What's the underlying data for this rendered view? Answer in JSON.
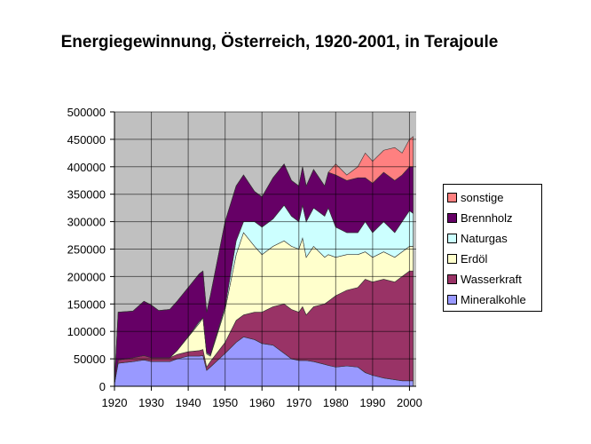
{
  "chart_data": {
    "type": "area",
    "stacked": true,
    "title": "Energiegewinnung, Österreich, 1920-2001, in Terajoule",
    "xlabel": "",
    "ylabel": "",
    "xlim": [
      1920,
      2001
    ],
    "ylim": [
      0,
      500000
    ],
    "x_ticks": [
      "1920",
      "1930",
      "1940",
      "1950",
      "1960",
      "1970",
      "1980",
      "1990",
      "2000"
    ],
    "y_ticks": [
      "0",
      "50000",
      "100000",
      "150000",
      "200000",
      "250000",
      "300000",
      "350000",
      "400000",
      "450000",
      "500000"
    ],
    "grid": true,
    "legend_position": "right",
    "background": "#c0c0c0",
    "x": [
      1920,
      1921,
      1925,
      1928,
      1930,
      1932,
      1935,
      1937,
      1940,
      1943,
      1944,
      1945,
      1946,
      1950,
      1953,
      1955,
      1958,
      1960,
      1963,
      1966,
      1968,
      1970,
      1971,
      1972,
      1974,
      1977,
      1978,
      1980,
      1983,
      1986,
      1988,
      1990,
      1993,
      1996,
      1998,
      2000,
      2001
    ],
    "series": [
      {
        "name": "Mineralkohle",
        "color": "#9999ff",
        "values": [
          5000,
          42000,
          45000,
          48000,
          45000,
          45000,
          45000,
          50000,
          55000,
          55000,
          56000,
          29000,
          35000,
          60000,
          80000,
          90000,
          85000,
          78000,
          75000,
          60000,
          50000,
          47000,
          47000,
          47000,
          45000,
          40000,
          38000,
          35000,
          37000,
          35000,
          25000,
          20000,
          15000,
          12000,
          10000,
          10000,
          10000
        ]
      },
      {
        "name": "Wasserkraft",
        "color": "#993366",
        "values": [
          0,
          6000,
          7000,
          8000,
          7000,
          7000,
          7000,
          8000,
          8000,
          10000,
          11000,
          6000,
          10000,
          20000,
          40000,
          40000,
          50000,
          57000,
          70000,
          90000,
          90000,
          88000,
          98000,
          83000,
          100000,
          110000,
          117000,
          130000,
          138000,
          145000,
          170000,
          170000,
          180000,
          178000,
          190000,
          200000,
          200000
        ]
      },
      {
        "name": "Erdöl",
        "color": "#ffffcc",
        "values": [
          0,
          0,
          0,
          0,
          0,
          0,
          0,
          7000,
          27000,
          50000,
          58000,
          24000,
          10000,
          60000,
          120000,
          150000,
          120000,
          105000,
          110000,
          115000,
          115000,
          115000,
          125000,
          105000,
          110000,
          85000,
          85000,
          70000,
          65000,
          60000,
          50000,
          45000,
          50000,
          45000,
          45000,
          45000,
          45000
        ]
      },
      {
        "name": "Naturgas",
        "color": "#ccffff",
        "values": [
          0,
          0,
          0,
          0,
          0,
          0,
          0,
          0,
          1000,
          3000,
          0,
          2000,
          2000,
          5000,
          25000,
          20000,
          45000,
          50000,
          50000,
          65000,
          55000,
          50000,
          60000,
          65000,
          70000,
          75000,
          85000,
          55000,
          40000,
          40000,
          55000,
          45000,
          55000,
          45000,
          55000,
          65000,
          60000
        ]
      },
      {
        "name": "Brennholz",
        "color": "#660066",
        "values": [
          0,
          87000,
          85000,
          99000,
          96000,
          86000,
          88000,
          90000,
          89000,
          87000,
          85000,
          74000,
          108000,
          155000,
          100000,
          85000,
          55000,
          55000,
          75000,
          75000,
          65000,
          65000,
          70000,
          65000,
          70000,
          55000,
          65000,
          95000,
          95000,
          100000,
          80000,
          90000,
          90000,
          95000,
          85000,
          80000,
          85000
        ]
      },
      {
        "name": "sonstige",
        "color": "#ff8080",
        "values": [
          0,
          0,
          0,
          0,
          0,
          0,
          0,
          0,
          0,
          0,
          0,
          0,
          0,
          0,
          0,
          0,
          0,
          0,
          0,
          0,
          0,
          0,
          0,
          0,
          0,
          0,
          0,
          20000,
          10000,
          20000,
          45000,
          40000,
          40000,
          60000,
          40000,
          50000,
          55000
        ]
      }
    ]
  }
}
